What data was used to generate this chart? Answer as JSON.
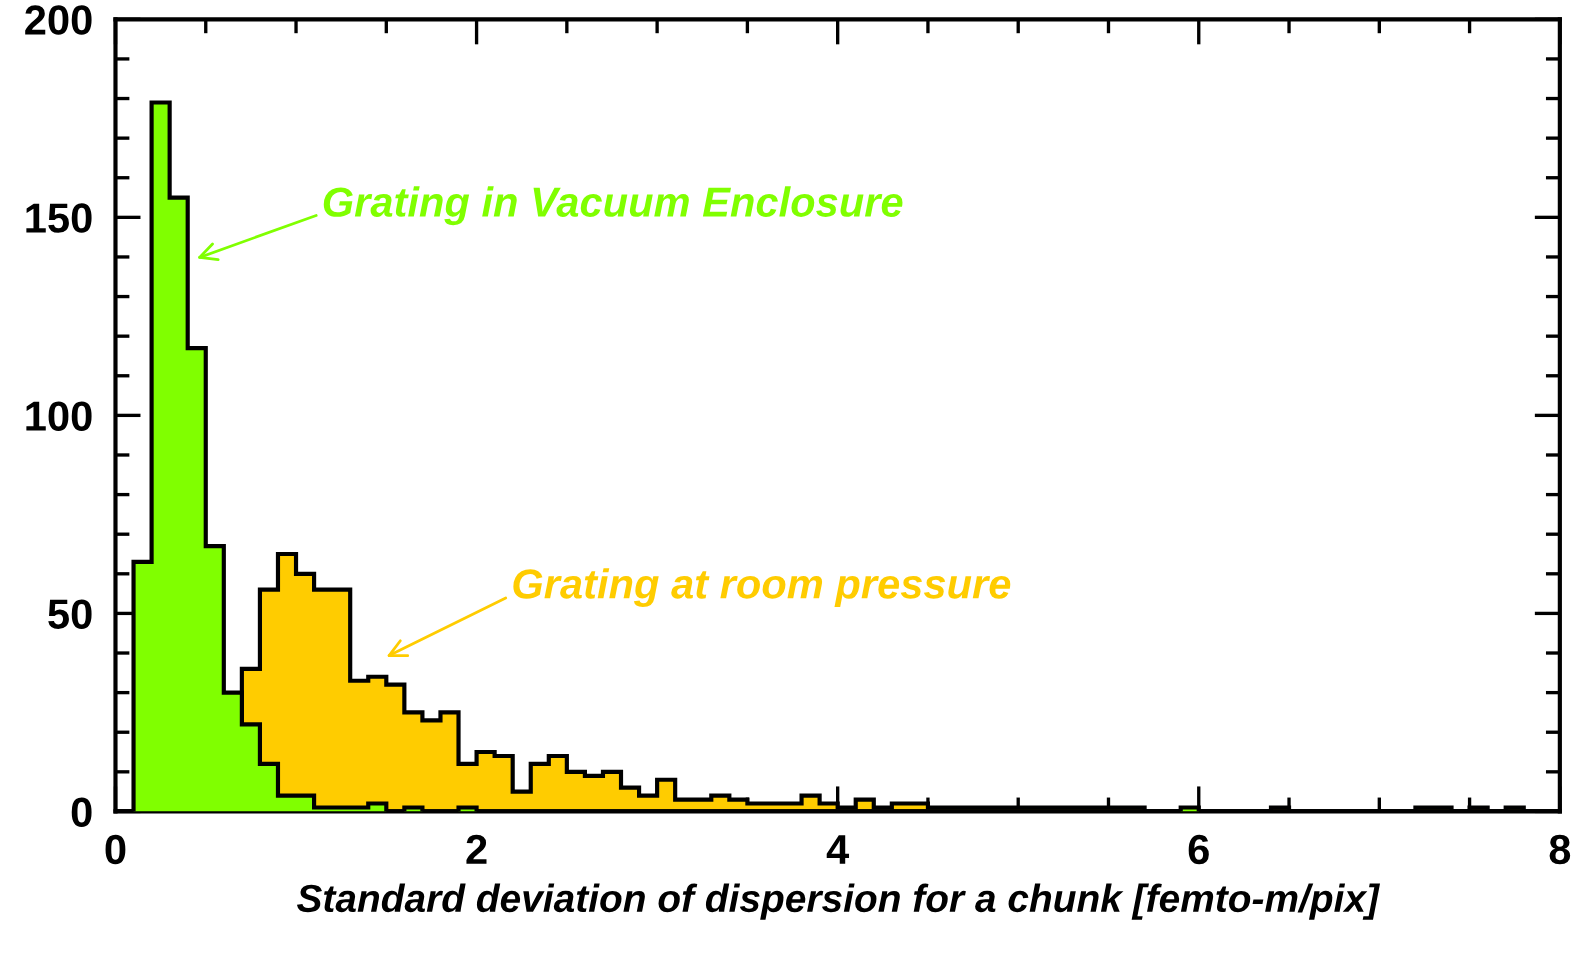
{
  "chart_data": {
    "type": "histogram",
    "xlabel": "Standard deviation of dispersion for a chunk [femto-m/pix]",
    "bins": [
      0,
      0.1,
      0.2,
      0.3,
      0.4,
      0.5,
      0.6,
      0.7,
      0.8,
      0.9,
      1,
      1.1,
      1.2,
      1.3,
      1.4,
      1.5,
      1.6,
      1.7,
      1.8,
      1.9,
      2,
      2.1,
      2.2,
      2.3,
      2.4,
      2.5,
      2.6,
      2.7,
      2.8,
      2.9,
      3,
      3.1,
      3.2,
      3.3,
      3.4,
      3.5,
      3.6,
      3.7,
      3.8,
      3.9,
      4,
      4.1,
      4.2,
      4.3,
      4.4,
      4.5,
      4.6,
      4.7,
      4.8,
      4.9,
      5,
      5.1,
      5.2,
      5.3,
      5.4,
      5.5,
      5.6,
      5.7,
      5.8,
      5.9,
      6,
      6.1,
      6.2,
      6.3,
      6.4,
      6.5,
      6.6,
      6.7,
      6.8,
      6.9,
      7,
      7.1,
      7.2,
      7.3,
      7.4,
      7.5,
      7.6,
      7.7,
      7.8,
      7.9,
      8
    ],
    "series": [
      {
        "name": "Grating at room pressure",
        "color": "#ffcc00",
        "values": [
          0,
          0,
          0,
          0,
          0,
          0,
          0,
          36,
          56,
          65,
          60,
          56,
          56,
          33,
          34,
          32,
          25,
          23,
          25,
          12,
          15,
          14,
          5,
          12,
          14,
          10,
          9,
          10,
          6,
          4,
          8,
          3,
          3,
          4,
          3,
          2,
          2,
          2,
          4,
          2,
          1,
          3,
          1,
          2,
          2,
          1,
          1,
          1,
          1,
          1,
          1,
          1,
          1,
          1,
          1,
          1,
          1,
          0,
          0,
          0,
          0,
          0,
          0,
          0,
          1,
          0,
          0,
          0,
          0,
          0,
          0,
          0,
          1,
          1,
          0,
          1,
          0,
          1,
          0,
          0
        ]
      },
      {
        "name": "Grating in Vacuum Enclosure",
        "color": "#80ff00",
        "values": [
          0,
          63,
          179,
          155,
          117,
          67,
          30,
          22,
          12,
          4,
          4,
          1,
          1,
          1,
          2,
          0,
          1,
          0,
          0,
          1,
          0,
          0,
          0,
          0,
          0,
          0,
          0,
          0,
          0,
          0,
          0,
          0,
          0,
          0,
          0,
          0,
          0,
          0,
          0,
          0,
          0,
          0,
          0,
          0,
          0,
          0,
          0,
          0,
          0,
          0,
          0,
          0,
          0,
          0,
          0,
          0,
          0,
          0,
          0,
          1,
          0,
          0,
          0,
          0,
          0,
          0,
          0,
          0,
          0,
          0,
          0,
          0,
          0,
          0,
          0,
          0,
          0,
          0,
          0,
          0
        ]
      }
    ],
    "xlim": [
      0,
      8
    ],
    "ylim": [
      0,
      200
    ],
    "xticks": [
      0,
      2,
      4,
      6,
      8
    ],
    "yticks": [
      0,
      50,
      100,
      150,
      200
    ],
    "grid": false,
    "legend": false
  }
}
